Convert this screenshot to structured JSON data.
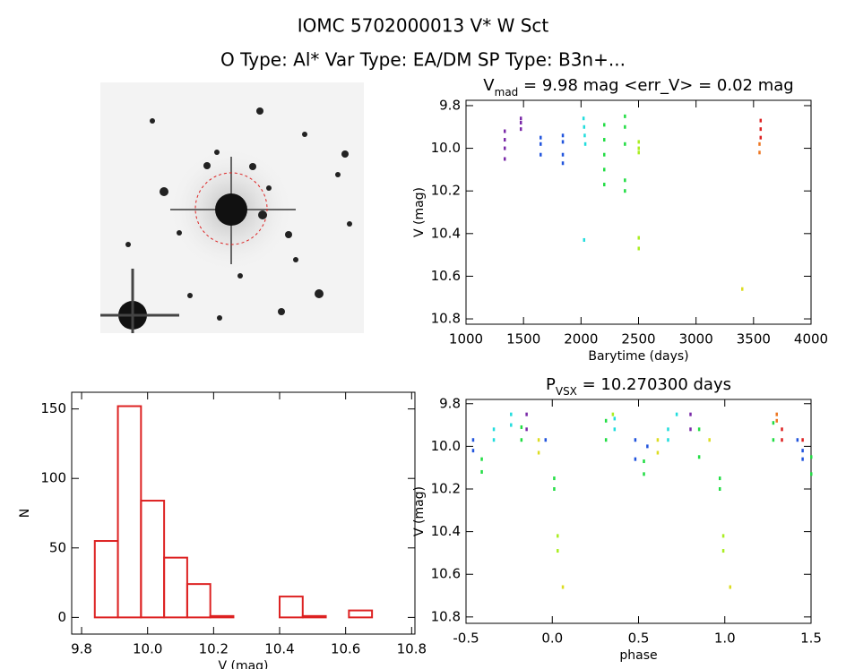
{
  "header": {
    "title": "IOMC 5702000013   V* W Sct",
    "subtitle": "O Type: Al*  Var Type: EA/DM  SP Type: B3n+..."
  },
  "chart_data": [
    {
      "type": "scatter",
      "title": {
        "text": "V",
        "sub": "mad",
        "rest": " = 9.98 mag <err_V> = 0.02 mag"
      },
      "x_label": "Barytime (days)",
      "y_label": "V (mag)",
      "xlim": [
        1000,
        4000
      ],
      "xticks": [
        1000,
        1500,
        2000,
        2500,
        3000,
        3500,
        4000
      ],
      "ylim": [
        10.825,
        9.775
      ],
      "yticks": [
        9.8,
        {
          "value": 10,
          "label": "10.0"
        },
        10.2,
        10.4,
        10.6,
        10.8
      ],
      "series": [
        {
          "color": "#7a2aa8",
          "x": [
            1335,
            1335,
            1335,
            1335,
            1475,
            1475,
            1475
          ],
          "values": [
            9.92,
            9.96,
            10.0,
            10.05,
            9.86,
            9.88,
            9.91
          ]
        },
        {
          "color": "#2255dd",
          "x": [
            1647,
            1647,
            1647,
            1840,
            1840,
            1840,
            1840
          ],
          "values": [
            9.95,
            9.98,
            10.03,
            9.94,
            9.97,
            10.03,
            10.07
          ]
        },
        {
          "color": "#22dddd",
          "x": [
            2020,
            2025,
            2030,
            2035,
            2025
          ],
          "values": [
            9.86,
            9.9,
            9.94,
            9.98,
            10.43
          ]
        },
        {
          "color": "#22dd44",
          "x": [
            2200,
            2200,
            2200,
            2200,
            2200,
            2380,
            2380,
            2380,
            2380,
            2380
          ],
          "values": [
            9.89,
            9.96,
            10.03,
            10.1,
            10.17,
            9.85,
            9.9,
            9.98,
            10.15,
            10.2
          ]
        },
        {
          "color": "#aaee22",
          "x": [
            2500,
            2500,
            2500,
            2500,
            2500
          ],
          "values": [
            9.97,
            10.0,
            10.02,
            10.42,
            10.47
          ]
        },
        {
          "color": "#dddd22",
          "x": [
            3400
          ],
          "values": [
            10.66
          ]
        },
        {
          "color": "#ee7722",
          "x": [
            3550,
            3550
          ],
          "values": [
            9.98,
            10.02
          ]
        },
        {
          "color": "#dd2222",
          "x": [
            3560,
            3560,
            3560
          ],
          "values": [
            9.87,
            9.91,
            9.95
          ]
        }
      ]
    },
    {
      "type": "histogram",
      "x_label": "V (mag)",
      "y_label": "N",
      "color": "#dd2222",
      "bins": [
        9.84,
        9.91,
        9.98,
        10.05,
        10.12,
        10.19,
        10.26,
        10.33,
        10.4,
        10.47,
        10.54,
        10.61,
        10.68
      ],
      "values": [
        55,
        152,
        84,
        43,
        24,
        1,
        0,
        0,
        15,
        1,
        0,
        5
      ],
      "xlim": [
        9.77,
        10.81
      ],
      "xticks": [
        9.8,
        {
          "value": 10,
          "label": "10.0"
        },
        10.2,
        10.4,
        10.6,
        10.8
      ],
      "ylim": [
        -12,
        162
      ],
      "yticks": [
        0,
        50,
        100,
        150
      ]
    },
    {
      "type": "scatter",
      "title": {
        "text": "P",
        "sub": "VSX",
        "rest": " = 10.270300 days"
      },
      "x_label": "phase",
      "y_label": "V (mag)",
      "xlim": [
        -0.5,
        1.5
      ],
      "xticks": [
        -0.5,
        {
          "value": 0,
          "label": "0.0"
        },
        0.5,
        {
          "value": 1,
          "label": "1.0"
        },
        1.5
      ],
      "ylim": [
        10.83,
        9.78
      ],
      "yticks": [
        9.8,
        {
          "value": 10,
          "label": "10.0"
        },
        10.2,
        10.4,
        10.6,
        10.8
      ],
      "series": [
        {
          "color": "#7a2aa8",
          "x": [
            -0.15,
            -0.15,
            0.8,
            0.8
          ],
          "values": [
            9.85,
            9.92,
            9.85,
            9.92
          ]
        },
        {
          "color": "#2255dd",
          "x": [
            -0.46,
            -0.46,
            -0.04,
            0.48,
            0.48,
            0.55,
            1.42,
            1.45,
            1.45
          ],
          "values": [
            9.97,
            10.02,
            9.97,
            9.97,
            10.06,
            10.0,
            9.97,
            10.02,
            10.06
          ]
        },
        {
          "color": "#22dddd",
          "x": [
            -0.34,
            -0.34,
            -0.24,
            -0.24,
            0.36,
            0.36,
            0.67,
            0.67,
            0.72
          ],
          "values": [
            9.92,
            9.97,
            9.85,
            9.9,
            9.87,
            9.92,
            9.92,
            9.97,
            9.85
          ]
        },
        {
          "color": "#22dd44",
          "x": [
            -0.41,
            -0.41,
            -0.18,
            -0.18,
            0.01,
            0.01,
            0.31,
            0.31,
            0.53,
            0.53,
            0.85,
            0.85,
            0.97,
            0.97,
            1.28,
            1.28,
            1.5,
            1.5
          ],
          "values": [
            10.06,
            10.12,
            9.91,
            9.97,
            10.15,
            10.2,
            9.88,
            9.97,
            10.07,
            10.13,
            9.92,
            10.05,
            10.15,
            10.2,
            9.89,
            9.97,
            10.05,
            10.13
          ]
        },
        {
          "color": "#aaee22",
          "x": [
            0.03,
            0.03,
            0.35,
            0.99,
            0.99
          ],
          "values": [
            10.42,
            10.49,
            9.85,
            10.42,
            10.49
          ]
        },
        {
          "color": "#dddd22",
          "x": [
            -0.08,
            -0.08,
            0.06,
            0.61,
            0.61,
            0.91,
            1.03
          ],
          "values": [
            9.97,
            10.03,
            10.66,
            9.97,
            10.03,
            9.97,
            10.66
          ]
        },
        {
          "color": "#ee7722",
          "x": [
            1.3,
            1.3
          ],
          "values": [
            9.85,
            9.88
          ]
        },
        {
          "color": "#dd2222",
          "x": [
            1.33,
            1.33,
            1.45
          ],
          "values": [
            9.92,
            9.97,
            9.97
          ]
        }
      ]
    }
  ]
}
